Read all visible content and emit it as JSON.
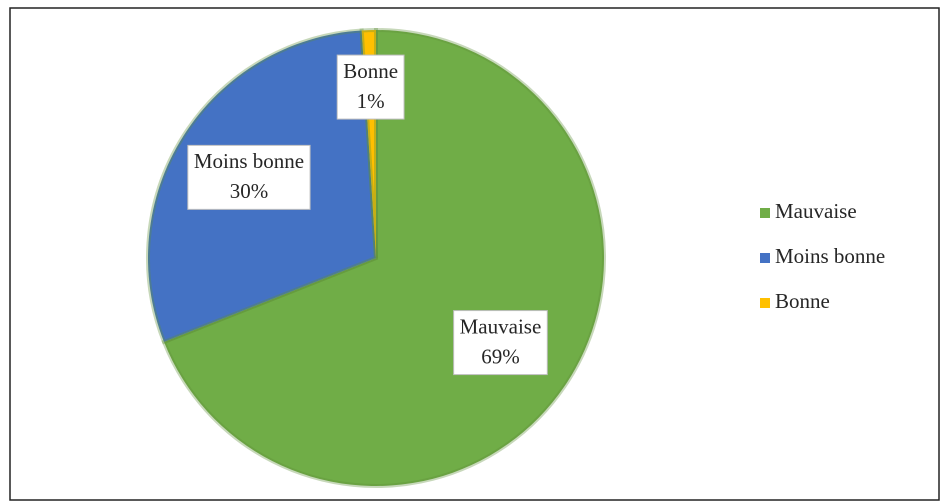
{
  "chart_data": {
    "type": "pie",
    "categories": [
      "Mauvaise",
      "Moins bonne",
      "Bonne"
    ],
    "values": [
      69,
      30,
      1
    ],
    "value_labels": [
      "69%",
      "30%",
      "1%"
    ],
    "colors": [
      "#70ad47",
      "#4472c4",
      "#ffc000"
    ],
    "legend": "right"
  }
}
